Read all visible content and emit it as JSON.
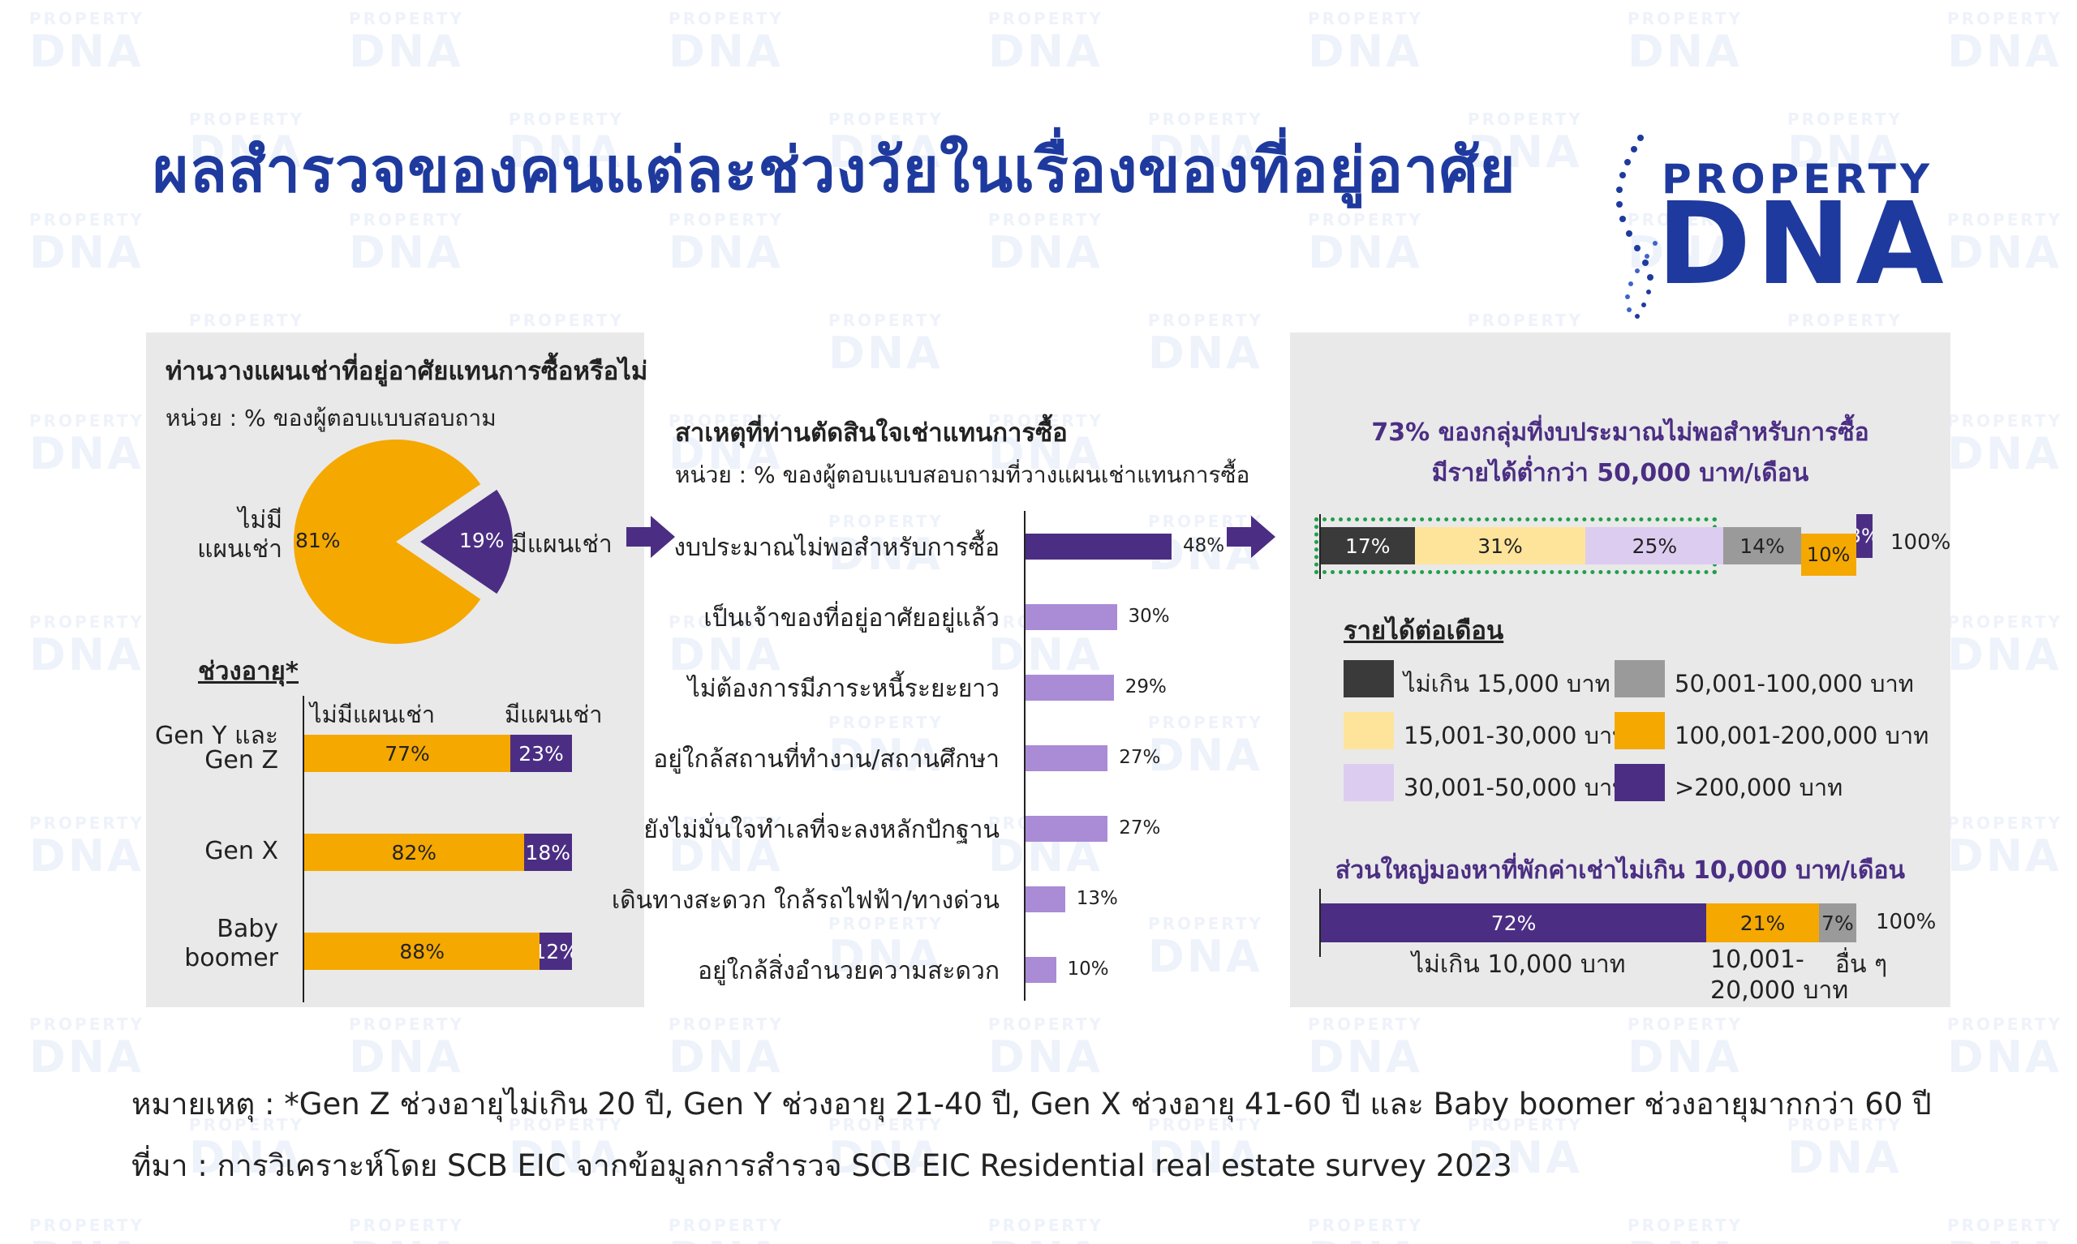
{
  "header": {
    "title": "ผลสำรวจของคนแต่ละช่วงวัยในเรื่องของที่อยู่อาศัย",
    "logo_top": "PROPERTY",
    "logo_bottom": "DNA",
    "watermark_small": "PROPERTY",
    "watermark_big": "DNA"
  },
  "colors": {
    "primary": "#1f3a9e",
    "orange": "#f5a800",
    "purple": "#4b2e83",
    "light_purple": "#a98bd6",
    "yellow": "#fde49a",
    "lavender": "#dccdf0",
    "gray": "#9a9a9a",
    "dark": "#3a3a3a",
    "green_dotted": "#1fa04a"
  },
  "chart_data": [
    {
      "type": "pie",
      "title": "ท่านวางแผนเช่าที่อยู่อาศัยแทนการซื้อหรือไม่",
      "subtitle": "หน่วย : % ของผู้ตอบแบบสอบถาม",
      "slices": [
        {
          "name": "ไม่มีแผนเช่า",
          "label_line1": "ไม่มี",
          "label_line2": "แผนเช่า",
          "value": 81,
          "value_label": "81%",
          "color": "#f5a800"
        },
        {
          "name": "มีแผนเช่า",
          "value": 19,
          "value_label": "19%",
          "color": "#4b2e83"
        }
      ]
    },
    {
      "type": "bar",
      "orientation": "horizontal",
      "stacked": true,
      "title": "ช่วงอายุ*",
      "series_names": [
        "ไม่มีแผนเช่า",
        "มีแผนเช่า"
      ],
      "categories": [
        {
          "line1": "Gen Y และ",
          "line2": "Gen Z"
        },
        {
          "line1": "Gen X",
          "line2": ""
        },
        {
          "line1": "Baby",
          "line2": "boomer"
        }
      ],
      "series": [
        {
          "name": "ไม่มีแผนเช่า",
          "values": [
            77,
            82,
            88
          ],
          "labels": [
            "77%",
            "82%",
            "88%"
          ],
          "color": "#f5a800"
        },
        {
          "name": "มีแผนเช่า",
          "values": [
            23,
            18,
            12
          ],
          "labels": [
            "23%",
            "18%",
            "12%"
          ],
          "color": "#4b2e83"
        }
      ]
    },
    {
      "type": "bar",
      "orientation": "horizontal",
      "title": "สาเหตุที่ท่านตัดสินใจเช่าแทนการซื้อ",
      "subtitle": "หน่วย : % ของผู้ตอบแบบสอบถามที่วางแผนเช่าแทนการซื้อ",
      "categories": [
        "งบประมาณไม่พอสำหรับการซื้อ",
        "เป็นเจ้าของที่อยู่อาศัยอยู่แล้ว",
        "ไม่ต้องการมีภาระหนี้ระยะยาว",
        "อยู่ใกล้สถานที่ทำงาน/สถานศึกษา",
        "ยังไม่มั่นใจทำเลที่จะลงหลักปักฐาน",
        "เดินทางสะดวก ใกล้รถไฟฟ้า/ทางด่วน",
        "อยู่ใกล้สิ่งอำนวยความสะดวก"
      ],
      "values": [
        48,
        30,
        29,
        27,
        27,
        13,
        10
      ],
      "labels": [
        "48%",
        "30%",
        "29%",
        "27%",
        "27%",
        "13%",
        "10%"
      ],
      "colors": [
        "#4b2e83",
        "#a98bd6",
        "#a98bd6",
        "#a98bd6",
        "#a98bd6",
        "#a98bd6",
        "#a98bd6"
      ]
    },
    {
      "type": "bar",
      "orientation": "horizontal",
      "stacked": true,
      "title_line1": "73% ของกลุ่มที่งบประมาณไม่พอสำหรับการซื้อ",
      "title_line2": "มีรายได้ต่ำกว่า 50,000 บาท/เดือน",
      "total_label": "100%",
      "legend_title": "รายได้ต่อเดือน",
      "segments": [
        {
          "name": "ไม่เกิน 15,000 บาท",
          "value": 17,
          "label": "17%",
          "color": "#3a3a3a"
        },
        {
          "name": "15,001-30,000 บาท",
          "value": 31,
          "label": "31%",
          "color": "#fde49a"
        },
        {
          "name": "30,001-50,000 บาท",
          "value": 25,
          "label": "25%",
          "color": "#dccdf0"
        },
        {
          "name": "50,001-100,000 บาท",
          "value": 14,
          "label": "14%",
          "color": "#9a9a9a"
        },
        {
          "name": "100,001-200,000 บาท",
          "value": 10,
          "label": "10%",
          "color": "#f5a800"
        },
        {
          "name": ">200,000 บาท",
          "value": 3,
          "label": "3%",
          "color": "#4b2e83"
        }
      ]
    },
    {
      "type": "bar",
      "orientation": "horizontal",
      "stacked": true,
      "title": "ส่วนใหญ่มองหาที่พักค่าเช่าไม่เกิน 10,000 บาท/เดือน",
      "total_label": "100%",
      "segments": [
        {
          "name": "ไม่เกิน 10,000 บาท",
          "value": 72,
          "label": "72%",
          "color": "#4b2e83"
        },
        {
          "name_line1": "10,001-",
          "name_line2": "20,000 บาท",
          "value": 21,
          "label": "21%",
          "color": "#f5a800"
        },
        {
          "name": "อื่น ๆ",
          "value": 7,
          "label": "7%",
          "color": "#9a9a9a"
        }
      ]
    }
  ],
  "footer": {
    "note": "หมายเหตุ : *Gen Z ช่วงอายุไม่เกิน 20 ปี, Gen Y ช่วงอายุ 21-40 ปี, Gen X ช่วงอายุ 41-60 ปี และ Baby boomer ช่วงอายุมากกว่า 60 ปี",
    "source": "ที่มา : การวิเคราะห์โดย SCB EIC จากข้อมูลการสำรวจ SCB EIC Residential real estate survey 2023"
  }
}
